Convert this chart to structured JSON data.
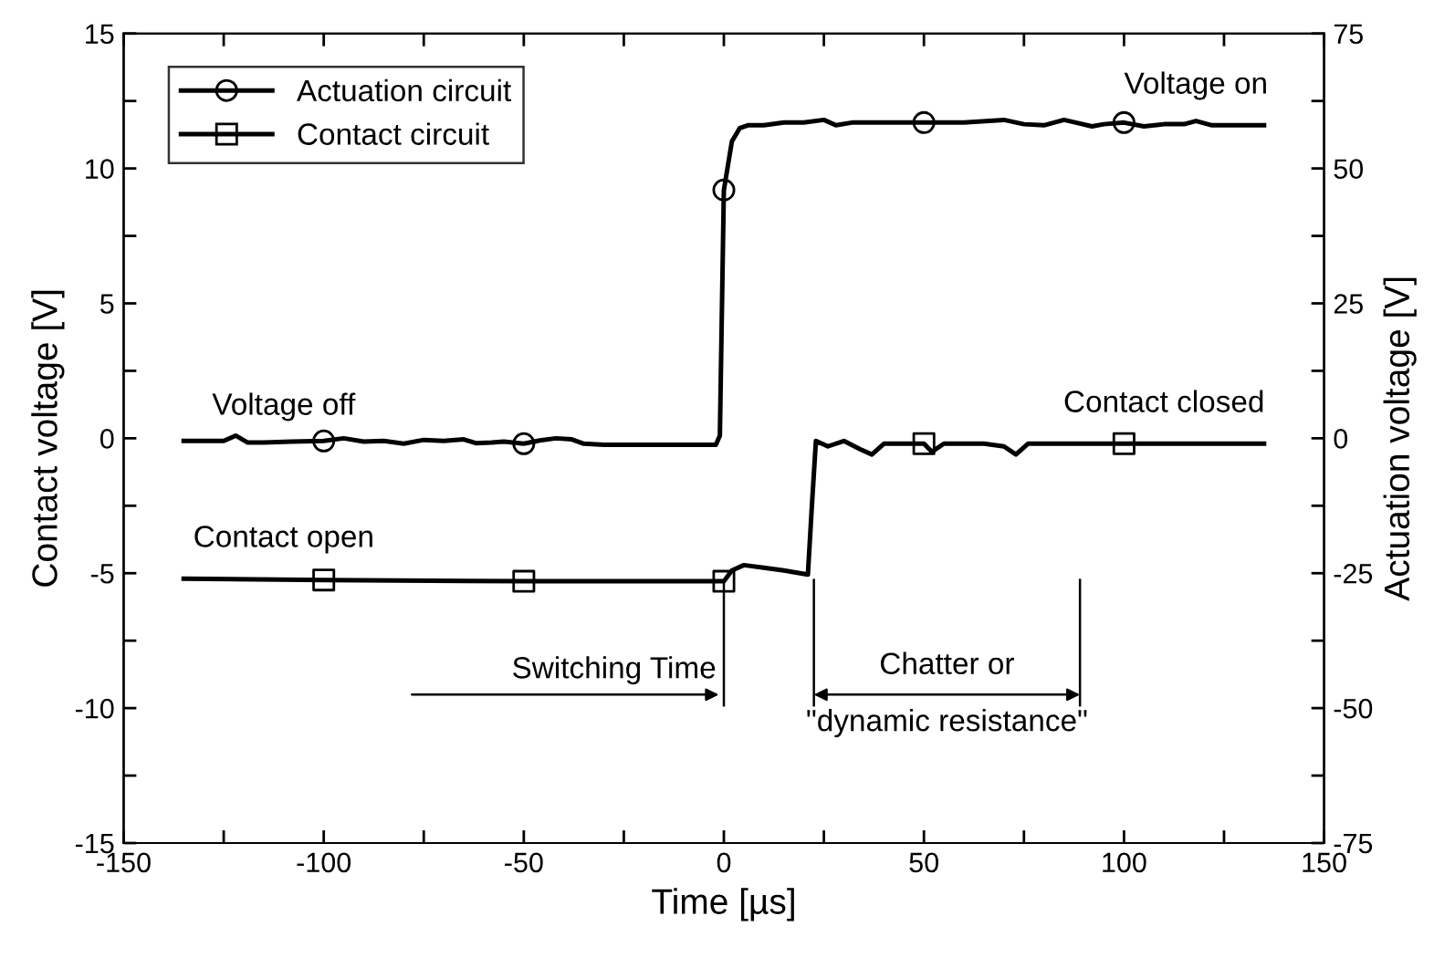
{
  "chart_data": {
    "type": "line",
    "xlabel": "Time [µs]",
    "ylabel": "Contact voltage [V]",
    "y2label": "Actuation voltage [V]",
    "xlim": [
      -150,
      150
    ],
    "ylim": [
      -15,
      15
    ],
    "y2lim": [
      -75,
      75
    ],
    "xticks": [
      -150,
      {
        "value": -125,
        "label": null
      },
      -100,
      {
        "value": -75,
        "label": null
      },
      -50,
      {
        "value": -25,
        "label": null
      },
      0,
      {
        "value": 25,
        "label": null
      },
      50,
      {
        "value": 75,
        "label": null
      },
      100,
      {
        "value": 125,
        "label": null
      },
      150
    ],
    "yticks": [
      -15,
      {
        "value": -12.5,
        "label": null
      },
      -10,
      {
        "value": -7.5,
        "label": null
      },
      -5,
      {
        "value": -2.5,
        "label": null
      },
      0,
      {
        "value": 2.5,
        "label": null
      },
      5,
      {
        "value": 7.5,
        "label": null
      },
      10,
      {
        "value": 12.5,
        "label": null
      },
      15
    ],
    "y2ticks": [
      -75,
      {
        "value": -62.5,
        "label": null
      },
      -50,
      {
        "value": -37.5,
        "label": null
      },
      -25,
      {
        "value": -12.5,
        "label": null
      },
      0,
      {
        "value": 12.5,
        "label": null
      },
      25,
      {
        "value": 37.5,
        "label": null
      },
      50,
      {
        "value": 62.5,
        "label": null
      },
      75
    ],
    "grid": false,
    "legend": "top left",
    "line_style": "solid",
    "series": [
      {
        "name": "Actuation circuit",
        "color": "#000000",
        "axis": "y2",
        "x": [
          -135,
          -125,
          -122,
          -119,
          -115,
          -108,
          -100,
          -95,
          -90,
          -85,
          -80,
          -75,
          -70,
          -65,
          -62,
          -58,
          -55,
          -50,
          -46,
          -42,
          -38,
          -35,
          -30,
          -20,
          -10,
          -2,
          -1,
          0,
          2,
          4,
          6,
          10,
          15,
          20,
          25,
          28,
          32,
          40,
          50,
          60,
          70,
          75,
          80,
          85,
          88,
          92,
          95,
          100,
          105,
          110,
          115,
          118,
          122,
          135
        ],
        "values": [
          -0.5,
          -0.5,
          0.5,
          -0.8,
          -0.8,
          -0.6,
          -0.5,
          0,
          -0.6,
          -0.5,
          -1,
          -0.3,
          -0.5,
          -0.2,
          -0.9,
          -0.8,
          -0.6,
          -1,
          -0.4,
          0,
          -0.2,
          -1,
          -1.2,
          -1.2,
          -1.2,
          -1.2,
          0.5,
          46,
          55,
          57.5,
          58,
          58,
          58.5,
          58.5,
          59,
          58,
          58.5,
          58.5,
          58.5,
          58.5,
          59,
          58.2,
          58,
          59,
          58.5,
          57.8,
          58.2,
          58.5,
          57.8,
          58.2,
          58.2,
          58.8,
          58,
          58
        ]
      },
      {
        "type": "scatter",
        "color": "#000000",
        "axis": "y2",
        "marker": "circle",
        "x": [
          -100,
          -50,
          0,
          50,
          100
        ],
        "values": [
          -0.5,
          -1,
          46,
          58.5,
          58.5
        ]
      },
      {
        "name": "Contact circuit",
        "color": "#000000",
        "x": [
          -135,
          -100,
          -50,
          -20,
          0,
          2,
          5,
          10,
          15,
          21,
          22,
          23,
          26,
          30,
          34,
          37,
          40,
          45,
          50,
          52,
          55,
          60,
          65,
          70,
          73,
          76,
          80,
          85,
          90,
          100,
          135
        ],
        "values": [
          -5.2,
          -5.25,
          -5.3,
          -5.3,
          -5.3,
          -4.9,
          -4.7,
          -4.8,
          -4.9,
          -5.05,
          -2.5,
          -0.1,
          -0.3,
          -0.1,
          -0.4,
          -0.6,
          -0.2,
          -0.2,
          -0.2,
          -0.5,
          -0.2,
          -0.2,
          -0.2,
          -0.3,
          -0.6,
          -0.2,
          -0.2,
          -0.2,
          -0.2,
          -0.2,
          -0.2
        ]
      },
      {
        "type": "scatter",
        "color": "#000000",
        "marker": "square",
        "x": [
          -100,
          -50,
          0,
          50,
          100
        ],
        "values": [
          -5.25,
          -5.3,
          -5.3,
          -0.2,
          -0.2
        ]
      }
    ],
    "ref_lines": [
      {
        "axis": "x",
        "value": 0,
        "color": "#000000"
      },
      {
        "axis": "x",
        "value": 22.5,
        "color": "#000000"
      },
      {
        "axis": "x",
        "value": 89,
        "color": "#000000"
      }
    ],
    "annotations": [
      {
        "text": "Voltage off",
        "x": -110,
        "y": -0.3
      },
      {
        "text": "Voltage on",
        "x": 118,
        "y": 11.6
      },
      {
        "text": "Contact open",
        "x": -110,
        "y": -5.2
      },
      {
        "text": "Contact closed",
        "x": 110,
        "y": -0.2
      },
      {
        "text": "Switching Time",
        "x": 0,
        "y": -9.5
      },
      "Chatter or\n\"dynamic resistance\""
    ]
  }
}
